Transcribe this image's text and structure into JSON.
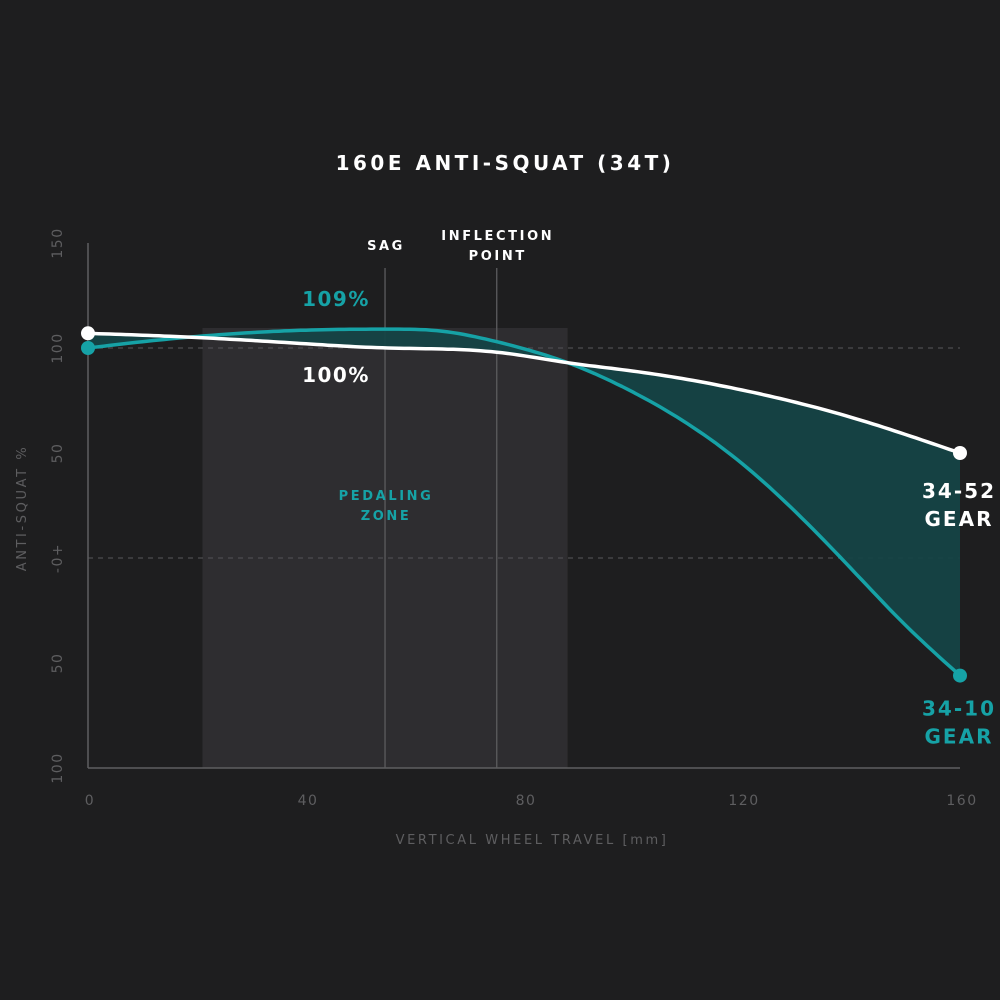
{
  "colors": {
    "background": "#1e1e1f",
    "teal": "#16a2a6",
    "fill": "#154346",
    "white": "#ffffff",
    "zone": "#2e2d30",
    "axis": "#5e5e60"
  },
  "chart_data": {
    "type": "line",
    "title": "160E ANTI-SQUAT (34T)",
    "xlabel": "VERTICAL WHEEL TRAVEL [mm]",
    "ylabel": "ANTI-SQUAT %",
    "xlim": [
      0,
      160
    ],
    "ylim": [
      -100,
      150
    ],
    "x_ticks": [
      0,
      40,
      80,
      120,
      160
    ],
    "x_tick_labels": [
      "0",
      "40",
      "80",
      "120",
      "160"
    ],
    "y_ticks": [
      150,
      100,
      50,
      0,
      -50,
      -100
    ],
    "y_tick_labels": [
      "150",
      "100",
      "50",
      "-0+",
      "50",
      "100"
    ],
    "reference_lines": [
      100,
      0
    ],
    "pedaling_zone": {
      "label": [
        "PEDALING",
        "ZONE"
      ],
      "x_range": [
        21,
        88
      ]
    },
    "markers": [
      {
        "x": 54.5,
        "label": [
          "SAG"
        ]
      },
      {
        "x": 75,
        "label": [
          "INFLECTION",
          "POINT"
        ]
      }
    ],
    "series": [
      {
        "name": "34-52 GEAR",
        "label_lines": [
          "34-52",
          "GEAR"
        ],
        "color": "#ffffff",
        "x": [
          0,
          20,
          40,
          55,
          75,
          88,
          100,
          120,
          140,
          160
        ],
        "y": [
          107,
          105,
          102,
          100,
          98,
          93,
          89,
          80,
          67,
          50
        ]
      },
      {
        "name": "34-10 GEAR",
        "label_lines": [
          "34-10",
          "GEAR"
        ],
        "color": "#16a2a6",
        "x": [
          0,
          10,
          25,
          40,
          55,
          65,
          75,
          88,
          100,
          120,
          140,
          150,
          160
        ],
        "y": [
          100,
          103,
          106.5,
          108.5,
          109,
          108,
          103,
          93,
          79,
          45,
          -5,
          -32,
          -56
        ]
      }
    ],
    "annotations": [
      {
        "text": "109%",
        "series": "34-10 GEAR"
      },
      {
        "text": "100%",
        "series": "34-52 GEAR"
      }
    ]
  }
}
